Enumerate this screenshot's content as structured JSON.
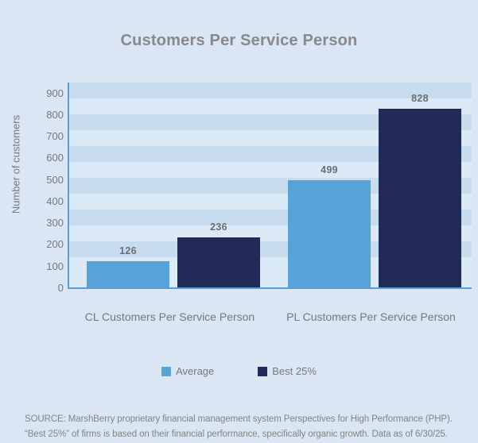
{
  "title": "Customers Per Service Person",
  "chart_data": {
    "type": "bar",
    "categories": [
      "CL Customers Per Service Person",
      "PL Customers Per Service Person"
    ],
    "series": [
      {
        "name": "Average",
        "color": "#57a3d8",
        "values": [
          126,
          499
        ]
      },
      {
        "name": "Best 25%",
        "color": "#222b58",
        "values": [
          236,
          828
        ]
      }
    ],
    "title": "Customers Per Service Person",
    "xlabel": "",
    "ylabel": "Number of customers",
    "ylim": [
      0,
      950
    ],
    "yticks": [
      0,
      100,
      200,
      300,
      400,
      500,
      600,
      700,
      800,
      900
    ],
    "grid": "horizontal striped bands",
    "legend_position": "bottom"
  },
  "colors": {
    "background": "#dae6f3",
    "stripe_dark": "#c8dcef",
    "stripe_light": "#dce9f6",
    "axis_line": "#5b9ed6",
    "title_text": "#87898c",
    "label_text": "#76787b",
    "value_text": "#6b6e70",
    "source_text": "#818488"
  },
  "source": {
    "line1": "SOURCE: MarshBerry proprietary financial management system Perspectives for High Performance (PHP).",
    "line2": "“Best 25%” of firms is based on their financial performance, specifically organic growth. Data as of 6/30/25."
  }
}
